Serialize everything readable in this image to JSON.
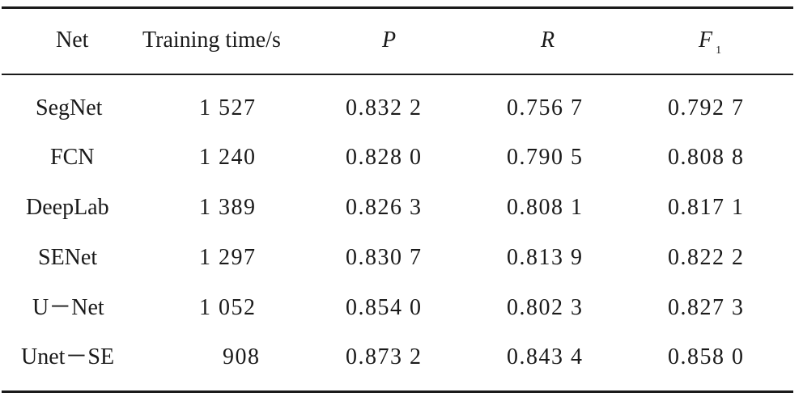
{
  "table": {
    "headers": {
      "net": "Net",
      "training_time": "Training time/s",
      "p": "P",
      "r": "R",
      "f_main": "F",
      "f_sub": "1"
    },
    "rows": [
      {
        "net": "SegNet",
        "time": "1 527",
        "p": "0.832 2",
        "r": "0.756 7",
        "f1": "0.792 7"
      },
      {
        "net": "FCN",
        "time": "1 240",
        "p": "0.828 0",
        "r": "0.790 5",
        "f1": "0.808 8"
      },
      {
        "net": "DeepLab",
        "time": "1 389",
        "p": "0.826 3",
        "r": "0.808 1",
        "f1": "0.817 1"
      },
      {
        "net": "SENet",
        "time": "1 297",
        "p": "0.830 7",
        "r": "0.813 9",
        "f1": "0.822 2"
      },
      {
        "net": "U－Net",
        "time": "1 052",
        "p": "0.854 0",
        "r": "0.802 3",
        "f1": "0.827 3"
      },
      {
        "net": "Unet－SE",
        "time": "908",
        "p": "0.873 2",
        "r": "0.843 4",
        "f1": "0.858 0"
      }
    ]
  }
}
